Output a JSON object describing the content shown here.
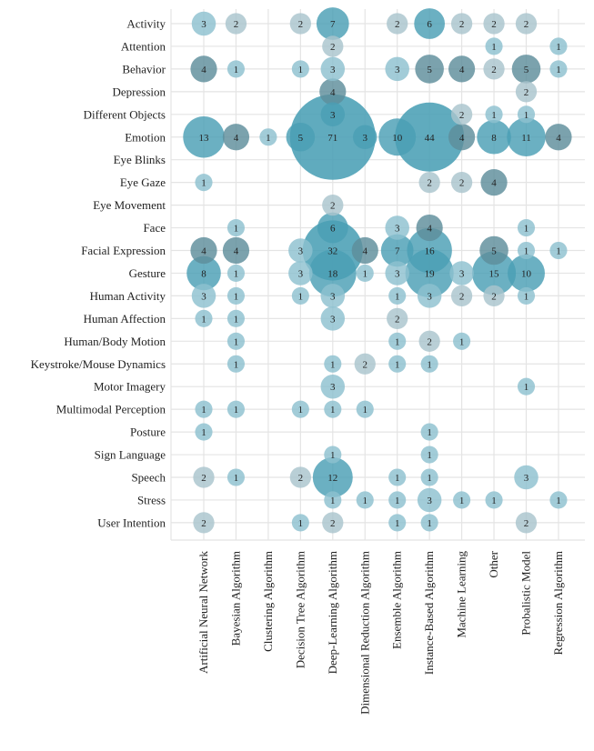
{
  "chart_data": {
    "type": "bubble-matrix",
    "title": "",
    "rows": [
      "Activity",
      "Attention",
      "Behavior",
      "Depression",
      "Different Objects",
      "Emotion",
      "Eye Blinks",
      "Eye Gaze",
      "Eye Movement",
      "Face",
      "Facial Expression",
      "Gesture",
      "Human Activity",
      "Human Affection",
      "Human/Body Motion",
      "Keystroke/Mouse Dynamics",
      "Motor Imagery",
      "Multimodal Perception",
      "Posture",
      "Sign Language",
      "Speech",
      "Stress",
      "User Intention"
    ],
    "columns": [
      "Artificial Neural Network",
      "Bayesian Algorithm",
      "Clustering Algorithm",
      "Decision Tree Algorithm",
      "Deep-Learning Algorithm",
      "Dimensional Reduction Algorithm",
      "Ensemble Algorithm",
      "Instance-Based Algorithm",
      "Machine Learning",
      "Other",
      "Probalistic Model",
      "Regression Algorithm"
    ],
    "cells": [
      {
        "row": "Activity",
        "col": "Artificial Neural Network",
        "value": 3,
        "shade": "light"
      },
      {
        "row": "Activity",
        "col": "Bayesian Algorithm",
        "value": 2,
        "shade": "grey"
      },
      {
        "row": "Activity",
        "col": "Decision Tree Algorithm",
        "value": 2,
        "shade": "grey"
      },
      {
        "row": "Activity",
        "col": "Deep-Learning Algorithm",
        "value": 7,
        "shade": "teal"
      },
      {
        "row": "Activity",
        "col": "Ensemble Algorithm",
        "value": 2,
        "shade": "grey"
      },
      {
        "row": "Activity",
        "col": "Instance-Based Algorithm",
        "value": 6,
        "shade": "teal"
      },
      {
        "row": "Activity",
        "col": "Machine Learning",
        "value": 2,
        "shade": "grey"
      },
      {
        "row": "Activity",
        "col": "Other",
        "value": 2,
        "shade": "grey"
      },
      {
        "row": "Activity",
        "col": "Probalistic Model",
        "value": 2,
        "shade": "grey"
      },
      {
        "row": "Attention",
        "col": "Deep-Learning Algorithm",
        "value": 2,
        "shade": "grey"
      },
      {
        "row": "Attention",
        "col": "Other",
        "value": 1,
        "shade": "light"
      },
      {
        "row": "Attention",
        "col": "Regression Algorithm",
        "value": 1,
        "shade": "light"
      },
      {
        "row": "Behavior",
        "col": "Artificial Neural Network",
        "value": 4,
        "shade": "dark"
      },
      {
        "row": "Behavior",
        "col": "Bayesian Algorithm",
        "value": 1,
        "shade": "light"
      },
      {
        "row": "Behavior",
        "col": "Decision Tree Algorithm",
        "value": 1,
        "shade": "light"
      },
      {
        "row": "Behavior",
        "col": "Deep-Learning Algorithm",
        "value": 3,
        "shade": "light"
      },
      {
        "row": "Behavior",
        "col": "Ensemble Algorithm",
        "value": 3,
        "shade": "light"
      },
      {
        "row": "Behavior",
        "col": "Instance-Based Algorithm",
        "value": 5,
        "shade": "dark"
      },
      {
        "row": "Behavior",
        "col": "Machine Learning",
        "value": 4,
        "shade": "dark"
      },
      {
        "row": "Behavior",
        "col": "Other",
        "value": 2,
        "shade": "grey"
      },
      {
        "row": "Behavior",
        "col": "Probalistic Model",
        "value": 5,
        "shade": "dark"
      },
      {
        "row": "Behavior",
        "col": "Regression Algorithm",
        "value": 1,
        "shade": "light"
      },
      {
        "row": "Depression",
        "col": "Deep-Learning Algorithm",
        "value": 4,
        "shade": "dark"
      },
      {
        "row": "Depression",
        "col": "Probalistic Model",
        "value": 2,
        "shade": "grey"
      },
      {
        "row": "Different Objects",
        "col": "Deep-Learning Algorithm",
        "value": 3,
        "shade": "teal"
      },
      {
        "row": "Different Objects",
        "col": "Machine Learning",
        "value": 2,
        "shade": "grey"
      },
      {
        "row": "Different Objects",
        "col": "Other",
        "value": 1,
        "shade": "light"
      },
      {
        "row": "Different Objects",
        "col": "Probalistic Model",
        "value": 1,
        "shade": "light"
      },
      {
        "row": "Emotion",
        "col": "Artificial Neural Network",
        "value": 13,
        "shade": "teal"
      },
      {
        "row": "Emotion",
        "col": "Bayesian Algorithm",
        "value": 4,
        "shade": "dark"
      },
      {
        "row": "Emotion",
        "col": "Clustering Algorithm",
        "value": 1,
        "shade": "light"
      },
      {
        "row": "Emotion",
        "col": "Decision Tree Algorithm",
        "value": 5,
        "shade": "teal"
      },
      {
        "row": "Emotion",
        "col": "Deep-Learning Algorithm",
        "value": 71,
        "shade": "teal"
      },
      {
        "row": "Emotion",
        "col": "Dimensional Reduction Algorithm",
        "value": 3,
        "shade": "teal"
      },
      {
        "row": "Emotion",
        "col": "Ensemble Algorithm",
        "value": 10,
        "shade": "teal"
      },
      {
        "row": "Emotion",
        "col": "Instance-Based Algorithm",
        "value": 44,
        "shade": "teal"
      },
      {
        "row": "Emotion",
        "col": "Machine Learning",
        "value": 4,
        "shade": "dark"
      },
      {
        "row": "Emotion",
        "col": "Other",
        "value": 8,
        "shade": "teal"
      },
      {
        "row": "Emotion",
        "col": "Probalistic Model",
        "value": 11,
        "shade": "teal"
      },
      {
        "row": "Emotion",
        "col": "Regression Algorithm",
        "value": 4,
        "shade": "dark"
      },
      {
        "row": "Eye Gaze",
        "col": "Artificial Neural Network",
        "value": 1,
        "shade": "light"
      },
      {
        "row": "Eye Gaze",
        "col": "Instance-Based Algorithm",
        "value": 2,
        "shade": "grey"
      },
      {
        "row": "Eye Gaze",
        "col": "Machine Learning",
        "value": 2,
        "shade": "grey"
      },
      {
        "row": "Eye Gaze",
        "col": "Other",
        "value": 4,
        "shade": "dark"
      },
      {
        "row": "Eye Movement",
        "col": "Deep-Learning Algorithm",
        "value": 2,
        "shade": "grey"
      },
      {
        "row": "Face",
        "col": "Bayesian Algorithm",
        "value": 1,
        "shade": "light"
      },
      {
        "row": "Face",
        "col": "Deep-Learning Algorithm",
        "value": 6,
        "shade": "teal"
      },
      {
        "row": "Face",
        "col": "Ensemble Algorithm",
        "value": 3,
        "shade": "light"
      },
      {
        "row": "Face",
        "col": "Instance-Based Algorithm",
        "value": 4,
        "shade": "dark"
      },
      {
        "row": "Face",
        "col": "Probalistic Model",
        "value": 1,
        "shade": "light"
      },
      {
        "row": "Facial Expression",
        "col": "Artificial Neural Network",
        "value": 4,
        "shade": "dark"
      },
      {
        "row": "Facial Expression",
        "col": "Bayesian Algorithm",
        "value": 4,
        "shade": "dark"
      },
      {
        "row": "Facial Expression",
        "col": "Decision Tree Algorithm",
        "value": 3,
        "shade": "light"
      },
      {
        "row": "Facial Expression",
        "col": "Deep-Learning Algorithm",
        "value": 32,
        "shade": "teal"
      },
      {
        "row": "Facial Expression",
        "col": "Dimensional Reduction Algorithm",
        "value": 4,
        "shade": "dark"
      },
      {
        "row": "Facial Expression",
        "col": "Ensemble Algorithm",
        "value": 7,
        "shade": "teal"
      },
      {
        "row": "Facial Expression",
        "col": "Instance-Based Algorithm",
        "value": 16,
        "shade": "teal"
      },
      {
        "row": "Facial Expression",
        "col": "Other",
        "value": 5,
        "shade": "dark"
      },
      {
        "row": "Facial Expression",
        "col": "Probalistic Model",
        "value": 1,
        "shade": "light"
      },
      {
        "row": "Facial Expression",
        "col": "Regression Algorithm",
        "value": 1,
        "shade": "light"
      },
      {
        "row": "Gesture",
        "col": "Artificial Neural Network",
        "value": 8,
        "shade": "teal"
      },
      {
        "row": "Gesture",
        "col": "Bayesian Algorithm",
        "value": 1,
        "shade": "light"
      },
      {
        "row": "Gesture",
        "col": "Decision Tree Algorithm",
        "value": 3,
        "shade": "light"
      },
      {
        "row": "Gesture",
        "col": "Deep-Learning Algorithm",
        "value": 18,
        "shade": "teal"
      },
      {
        "row": "Gesture",
        "col": "Dimensional Reduction Algorithm",
        "value": 1,
        "shade": "light"
      },
      {
        "row": "Gesture",
        "col": "Ensemble Algorithm",
        "value": 3,
        "shade": "light"
      },
      {
        "row": "Gesture",
        "col": "Instance-Based Algorithm",
        "value": 19,
        "shade": "teal"
      },
      {
        "row": "Gesture",
        "col": "Machine Learning",
        "value": 3,
        "shade": "light"
      },
      {
        "row": "Gesture",
        "col": "Other",
        "value": 15,
        "shade": "teal"
      },
      {
        "row": "Gesture",
        "col": "Probalistic Model",
        "value": 10,
        "shade": "teal"
      },
      {
        "row": "Human Activity",
        "col": "Artificial Neural Network",
        "value": 3,
        "shade": "light"
      },
      {
        "row": "Human Activity",
        "col": "Bayesian Algorithm",
        "value": 1,
        "shade": "light"
      },
      {
        "row": "Human Activity",
        "col": "Decision Tree Algorithm",
        "value": 1,
        "shade": "light"
      },
      {
        "row": "Human Activity",
        "col": "Deep-Learning Algorithm",
        "value": 3,
        "shade": "light"
      },
      {
        "row": "Human Activity",
        "col": "Ensemble Algorithm",
        "value": 1,
        "shade": "light"
      },
      {
        "row": "Human Activity",
        "col": "Instance-Based Algorithm",
        "value": 3,
        "shade": "light"
      },
      {
        "row": "Human Activity",
        "col": "Machine Learning",
        "value": 2,
        "shade": "grey"
      },
      {
        "row": "Human Activity",
        "col": "Other",
        "value": 2,
        "shade": "grey"
      },
      {
        "row": "Human Activity",
        "col": "Probalistic Model",
        "value": 1,
        "shade": "light"
      },
      {
        "row": "Human Affection",
        "col": "Artificial Neural Network",
        "value": 1,
        "shade": "light"
      },
      {
        "row": "Human Affection",
        "col": "Bayesian Algorithm",
        "value": 1,
        "shade": "light"
      },
      {
        "row": "Human Affection",
        "col": "Deep-Learning Algorithm",
        "value": 3,
        "shade": "light"
      },
      {
        "row": "Human Affection",
        "col": "Ensemble Algorithm",
        "value": 2,
        "shade": "grey"
      },
      {
        "row": "Human/Body Motion",
        "col": "Bayesian Algorithm",
        "value": 1,
        "shade": "light"
      },
      {
        "row": "Human/Body Motion",
        "col": "Ensemble Algorithm",
        "value": 1,
        "shade": "light"
      },
      {
        "row": "Human/Body Motion",
        "col": "Instance-Based Algorithm",
        "value": 2,
        "shade": "grey"
      },
      {
        "row": "Human/Body Motion",
        "col": "Machine Learning",
        "value": 1,
        "shade": "light"
      },
      {
        "row": "Keystroke/Mouse Dynamics",
        "col": "Bayesian Algorithm",
        "value": 1,
        "shade": "light"
      },
      {
        "row": "Keystroke/Mouse Dynamics",
        "col": "Deep-Learning Algorithm",
        "value": 1,
        "shade": "light"
      },
      {
        "row": "Keystroke/Mouse Dynamics",
        "col": "Dimensional Reduction Algorithm",
        "value": 2,
        "shade": "grey"
      },
      {
        "row": "Keystroke/Mouse Dynamics",
        "col": "Ensemble Algorithm",
        "value": 1,
        "shade": "light"
      },
      {
        "row": "Keystroke/Mouse Dynamics",
        "col": "Instance-Based Algorithm",
        "value": 1,
        "shade": "light"
      },
      {
        "row": "Motor Imagery",
        "col": "Deep-Learning Algorithm",
        "value": 3,
        "shade": "light"
      },
      {
        "row": "Motor Imagery",
        "col": "Probalistic Model",
        "value": 1,
        "shade": "light"
      },
      {
        "row": "Multimodal Perception",
        "col": "Artificial Neural Network",
        "value": 1,
        "shade": "light"
      },
      {
        "row": "Multimodal Perception",
        "col": "Bayesian Algorithm",
        "value": 1,
        "shade": "light"
      },
      {
        "row": "Multimodal Perception",
        "col": "Decision Tree Algorithm",
        "value": 1,
        "shade": "light"
      },
      {
        "row": "Multimodal Perception",
        "col": "Deep-Learning Algorithm",
        "value": 1,
        "shade": "light"
      },
      {
        "row": "Multimodal Perception",
        "col": "Dimensional Reduction Algorithm",
        "value": 1,
        "shade": "light"
      },
      {
        "row": "Posture",
        "col": "Artificial Neural Network",
        "value": 1,
        "shade": "light"
      },
      {
        "row": "Posture",
        "col": "Instance-Based Algorithm",
        "value": 1,
        "shade": "light"
      },
      {
        "row": "Sign Language",
        "col": "Deep-Learning Algorithm",
        "value": 1,
        "shade": "light"
      },
      {
        "row": "Sign Language",
        "col": "Instance-Based Algorithm",
        "value": 1,
        "shade": "light"
      },
      {
        "row": "Speech",
        "col": "Artificial Neural Network",
        "value": 2,
        "shade": "grey"
      },
      {
        "row": "Speech",
        "col": "Bayesian Algorithm",
        "value": 1,
        "shade": "light"
      },
      {
        "row": "Speech",
        "col": "Decision Tree Algorithm",
        "value": 2,
        "shade": "grey"
      },
      {
        "row": "Speech",
        "col": "Deep-Learning Algorithm",
        "value": 12,
        "shade": "teal"
      },
      {
        "row": "Speech",
        "col": "Ensemble Algorithm",
        "value": 1,
        "shade": "light"
      },
      {
        "row": "Speech",
        "col": "Instance-Based Algorithm",
        "value": 1,
        "shade": "light"
      },
      {
        "row": "Speech",
        "col": "Probalistic Model",
        "value": 3,
        "shade": "light"
      },
      {
        "row": "Stress",
        "col": "Deep-Learning Algorithm",
        "value": 1,
        "shade": "light"
      },
      {
        "row": "Stress",
        "col": "Dimensional Reduction Algorithm",
        "value": 1,
        "shade": "light"
      },
      {
        "row": "Stress",
        "col": "Ensemble Algorithm",
        "value": 1,
        "shade": "light"
      },
      {
        "row": "Stress",
        "col": "Instance-Based Algorithm",
        "value": 3,
        "shade": "light"
      },
      {
        "row": "Stress",
        "col": "Machine Learning",
        "value": 1,
        "shade": "light"
      },
      {
        "row": "Stress",
        "col": "Other",
        "value": 1,
        "shade": "light"
      },
      {
        "row": "Stress",
        "col": "Regression Algorithm",
        "value": 1,
        "shade": "light"
      },
      {
        "row": "User Intention",
        "col": "Artificial Neural Network",
        "value": 2,
        "shade": "grey"
      },
      {
        "row": "User Intention",
        "col": "Decision Tree Algorithm",
        "value": 1,
        "shade": "light"
      },
      {
        "row": "User Intention",
        "col": "Deep-Learning Algorithm",
        "value": 2,
        "shade": "grey"
      },
      {
        "row": "User Intention",
        "col": "Ensemble Algorithm",
        "value": 1,
        "shade": "light"
      },
      {
        "row": "User Intention",
        "col": "Instance-Based Algorithm",
        "value": 1,
        "shade": "light"
      },
      {
        "row": "User Intention",
        "col": "Probalistic Model",
        "value": 2,
        "shade": "grey"
      }
    ],
    "colors": {
      "teal": "#4a9fb5",
      "light": "#8ec1cf",
      "grey": "#aac4cd",
      "dark": "#5e8e9b"
    },
    "grid": true,
    "legend": "none"
  }
}
